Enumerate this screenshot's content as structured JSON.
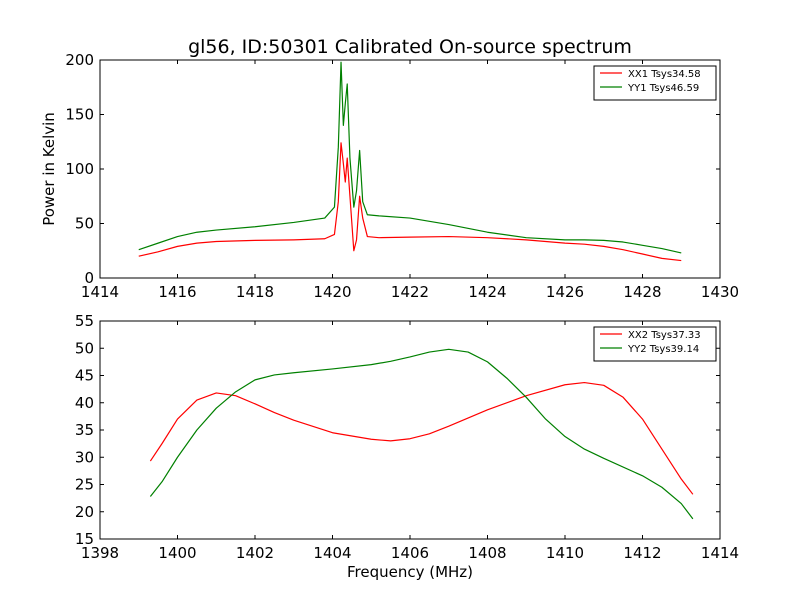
{
  "title": "gl56, ID:50301 Calibrated On-source spectrum",
  "chart_data": [
    {
      "type": "line",
      "ylabel": "Power in Kelvin",
      "xlabel": "",
      "xlim": [
        1414,
        1430
      ],
      "ylim": [
        0,
        200
      ],
      "xticks": [
        "1414",
        "1416",
        "1418",
        "1420",
        "1422",
        "1424",
        "1426",
        "1428",
        "1430"
      ],
      "yticks": [
        "0",
        "50",
        "100",
        "150",
        "200"
      ],
      "grid": false,
      "legend_position": "top-right",
      "series": [
        {
          "name": "XX1 Tsys34.58",
          "color": "#ff0000",
          "x": [
            1415.0,
            1415.5,
            1416.0,
            1416.5,
            1417.0,
            1418.0,
            1419.0,
            1419.8,
            1420.05,
            1420.15,
            1420.22,
            1420.28,
            1420.33,
            1420.38,
            1420.45,
            1420.55,
            1420.62,
            1420.7,
            1420.78,
            1420.9,
            1421.2,
            1422.0,
            1423.0,
            1424.0,
            1425.0,
            1426.0,
            1426.5,
            1427.0,
            1427.5,
            1428.0,
            1428.5,
            1429.0
          ],
          "y": [
            20,
            24,
            29,
            32,
            33.5,
            34.5,
            35,
            36,
            40,
            70,
            124,
            105,
            88,
            110,
            75,
            25,
            35,
            75,
            55,
            38,
            37,
            37.5,
            38,
            37,
            35,
            32,
            31,
            29,
            26,
            22,
            18,
            16
          ]
        },
        {
          "name": "YY1 Tsys46.59",
          "color": "#008000",
          "x": [
            1415.0,
            1415.5,
            1416.0,
            1416.5,
            1417.0,
            1418.0,
            1419.0,
            1419.8,
            1420.05,
            1420.15,
            1420.22,
            1420.28,
            1420.33,
            1420.38,
            1420.45,
            1420.55,
            1420.62,
            1420.7,
            1420.78,
            1420.9,
            1421.2,
            1422.0,
            1423.0,
            1424.0,
            1425.0,
            1426.0,
            1426.5,
            1427.0,
            1427.5,
            1428.0,
            1428.5,
            1429.0
          ],
          "y": [
            26,
            32,
            38,
            42,
            44,
            47,
            51,
            55,
            65,
            120,
            198,
            140,
            160,
            178,
            110,
            65,
            80,
            117,
            70,
            58,
            57,
            55,
            49,
            42,
            37,
            35,
            35,
            34.5,
            33,
            30,
            27,
            23
          ]
        }
      ]
    },
    {
      "type": "line",
      "ylabel": "",
      "xlabel": "Frequency (MHz)",
      "xlim": [
        1398,
        1414
      ],
      "ylim": [
        15,
        55
      ],
      "xticks": [
        "1398",
        "1400",
        "1402",
        "1404",
        "1406",
        "1408",
        "1410",
        "1412",
        "1414"
      ],
      "yticks": [
        "15",
        "20",
        "25",
        "30",
        "35",
        "40",
        "45",
        "50",
        "55"
      ],
      "grid": false,
      "legend_position": "top-right",
      "series": [
        {
          "name": "XX2 Tsys37.33",
          "color": "#ff0000",
          "x": [
            1399.3,
            1399.6,
            1400.0,
            1400.5,
            1401.0,
            1401.5,
            1402.0,
            1402.5,
            1403.0,
            1404.0,
            1405.0,
            1405.5,
            1406.0,
            1406.5,
            1407.0,
            1408.0,
            1409.0,
            1410.0,
            1410.5,
            1411.0,
            1411.5,
            1412.0,
            1412.5,
            1413.0,
            1413.3
          ],
          "y": [
            29.3,
            32.5,
            37,
            40.5,
            41.8,
            41.3,
            39.8,
            38.2,
            36.8,
            34.5,
            33.3,
            33,
            33.4,
            34.3,
            35.7,
            38.7,
            41.3,
            43.3,
            43.7,
            43.2,
            41,
            37,
            31.5,
            26,
            23.2
          ]
        },
        {
          "name": "YY2 Tsys39.14",
          "color": "#008000",
          "x": [
            1399.3,
            1399.6,
            1400.0,
            1400.5,
            1401.0,
            1401.5,
            1402.0,
            1402.5,
            1403.0,
            1404.0,
            1405.0,
            1405.5,
            1406.0,
            1406.5,
            1407.0,
            1407.5,
            1408.0,
            1408.5,
            1409.0,
            1409.5,
            1410.0,
            1410.5,
            1411.0,
            1412.0,
            1412.5,
            1413.0,
            1413.3
          ],
          "y": [
            22.8,
            25.5,
            30,
            35,
            39,
            42,
            44.2,
            45.1,
            45.5,
            46.2,
            47,
            47.6,
            48.4,
            49.3,
            49.8,
            49.3,
            47.5,
            44.5,
            41,
            37,
            33.8,
            31.5,
            29.8,
            26.6,
            24.5,
            21.5,
            18.7
          ]
        }
      ]
    }
  ]
}
